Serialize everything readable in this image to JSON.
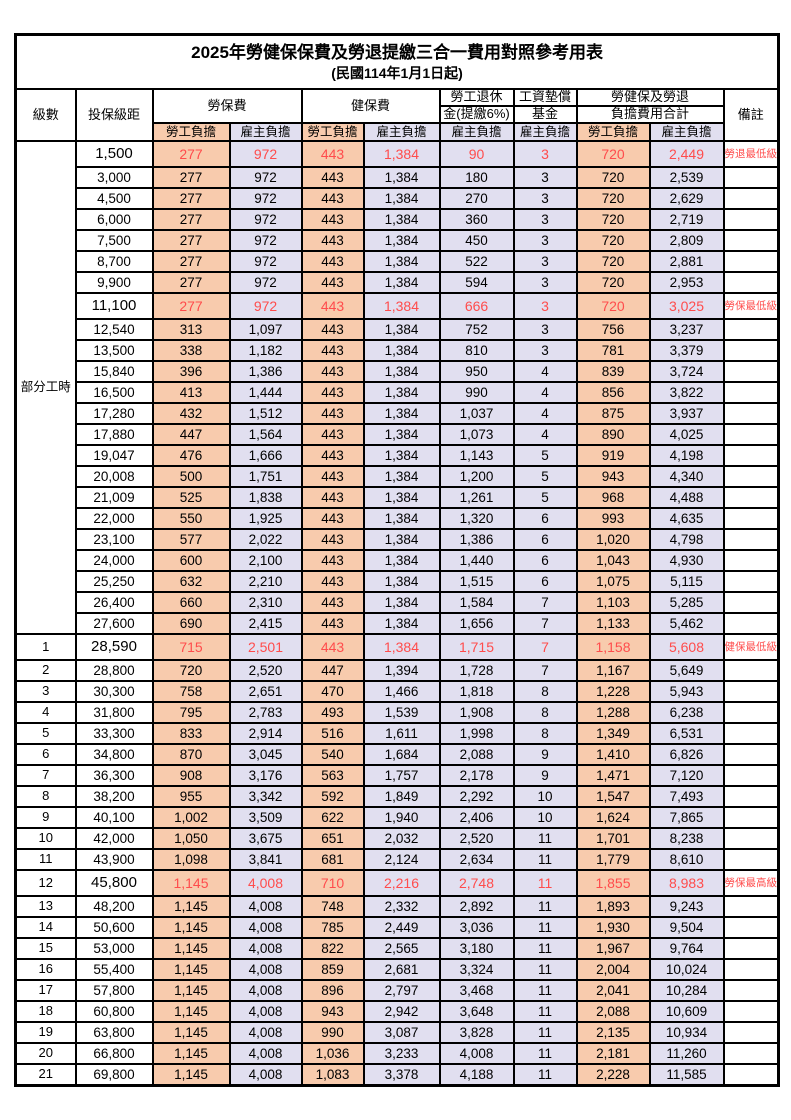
{
  "title": {
    "line1": "2025年勞健保保費及勞退提繳三合一費用對照參考用表",
    "line2": "(民國114年1月1日起)"
  },
  "columns": {
    "level": "級數",
    "bracket": "投保級距",
    "labor_insurance": "勞保費",
    "health_insurance": "健保費",
    "pension_line1": "勞工退休",
    "pension_line2": "金(提繳6%)",
    "wage_fund_line1": "工資墊償",
    "wage_fund_line2": "基金",
    "total_line1": "勞健保及勞退",
    "total_line2": "負擔費用合計",
    "remark": "備註"
  },
  "subheaders": [
    "勞工負擔",
    "雇主負擔",
    "勞工負擔",
    "雇主負擔",
    "雇主負擔",
    "雇主負擔",
    "勞工負擔",
    "雇主負擔"
  ],
  "part_time_label": "部分工時",
  "colors": {
    "employee_bg": "#F8CBAD",
    "employer_bg": "#E1DFF0",
    "highlight_text": "#FF4C4C",
    "border": "#000000"
  },
  "rows": [
    {
      "level": "",
      "bracket": "1,500",
      "values": [
        "277",
        "972",
        "443",
        "1,384",
        "90",
        "3",
        "720",
        "2,449"
      ],
      "remark": "勞退最低級距",
      "highlight": true
    },
    {
      "level": "",
      "bracket": "3,000",
      "values": [
        "277",
        "972",
        "443",
        "1,384",
        "180",
        "3",
        "720",
        "2,539"
      ],
      "remark": "",
      "highlight": false
    },
    {
      "level": "",
      "bracket": "4,500",
      "values": [
        "277",
        "972",
        "443",
        "1,384",
        "270",
        "3",
        "720",
        "2,629"
      ],
      "remark": "",
      "highlight": false
    },
    {
      "level": "",
      "bracket": "6,000",
      "values": [
        "277",
        "972",
        "443",
        "1,384",
        "360",
        "3",
        "720",
        "2,719"
      ],
      "remark": "",
      "highlight": false
    },
    {
      "level": "",
      "bracket": "7,500",
      "values": [
        "277",
        "972",
        "443",
        "1,384",
        "450",
        "3",
        "720",
        "2,809"
      ],
      "remark": "",
      "highlight": false
    },
    {
      "level": "",
      "bracket": "8,700",
      "values": [
        "277",
        "972",
        "443",
        "1,384",
        "522",
        "3",
        "720",
        "2,881"
      ],
      "remark": "",
      "highlight": false
    },
    {
      "level": "",
      "bracket": "9,900",
      "values": [
        "277",
        "972",
        "443",
        "1,384",
        "594",
        "3",
        "720",
        "2,953"
      ],
      "remark": "",
      "highlight": false
    },
    {
      "level": "",
      "bracket": "11,100",
      "values": [
        "277",
        "972",
        "443",
        "1,384",
        "666",
        "3",
        "720",
        "3,025"
      ],
      "remark": "勞保最低級距",
      "highlight": true
    },
    {
      "level": "",
      "bracket": "12,540",
      "values": [
        "313",
        "1,097",
        "443",
        "1,384",
        "752",
        "3",
        "756",
        "3,237"
      ],
      "remark": "",
      "highlight": false
    },
    {
      "level": "",
      "bracket": "13,500",
      "values": [
        "338",
        "1,182",
        "443",
        "1,384",
        "810",
        "3",
        "781",
        "3,379"
      ],
      "remark": "",
      "highlight": false
    },
    {
      "level": "",
      "bracket": "15,840",
      "values": [
        "396",
        "1,386",
        "443",
        "1,384",
        "950",
        "4",
        "839",
        "3,724"
      ],
      "remark": "",
      "highlight": false
    },
    {
      "level": "",
      "bracket": "16,500",
      "values": [
        "413",
        "1,444",
        "443",
        "1,384",
        "990",
        "4",
        "856",
        "3,822"
      ],
      "remark": "",
      "highlight": false
    },
    {
      "level": "",
      "bracket": "17,280",
      "values": [
        "432",
        "1,512",
        "443",
        "1,384",
        "1,037",
        "4",
        "875",
        "3,937"
      ],
      "remark": "",
      "highlight": false
    },
    {
      "level": "",
      "bracket": "17,880",
      "values": [
        "447",
        "1,564",
        "443",
        "1,384",
        "1,073",
        "4",
        "890",
        "4,025"
      ],
      "remark": "",
      "highlight": false
    },
    {
      "level": "",
      "bracket": "19,047",
      "values": [
        "476",
        "1,666",
        "443",
        "1,384",
        "1,143",
        "5",
        "919",
        "4,198"
      ],
      "remark": "",
      "highlight": false
    },
    {
      "level": "",
      "bracket": "20,008",
      "values": [
        "500",
        "1,751",
        "443",
        "1,384",
        "1,200",
        "5",
        "943",
        "4,340"
      ],
      "remark": "",
      "highlight": false
    },
    {
      "level": "",
      "bracket": "21,009",
      "values": [
        "525",
        "1,838",
        "443",
        "1,384",
        "1,261",
        "5",
        "968",
        "4,488"
      ],
      "remark": "",
      "highlight": false
    },
    {
      "level": "",
      "bracket": "22,000",
      "values": [
        "550",
        "1,925",
        "443",
        "1,384",
        "1,320",
        "6",
        "993",
        "4,635"
      ],
      "remark": "",
      "highlight": false
    },
    {
      "level": "",
      "bracket": "23,100",
      "values": [
        "577",
        "2,022",
        "443",
        "1,384",
        "1,386",
        "6",
        "1,020",
        "4,798"
      ],
      "remark": "",
      "highlight": false
    },
    {
      "level": "",
      "bracket": "24,000",
      "values": [
        "600",
        "2,100",
        "443",
        "1,384",
        "1,440",
        "6",
        "1,043",
        "4,930"
      ],
      "remark": "",
      "highlight": false
    },
    {
      "level": "",
      "bracket": "25,250",
      "values": [
        "632",
        "2,210",
        "443",
        "1,384",
        "1,515",
        "6",
        "1,075",
        "5,115"
      ],
      "remark": "",
      "highlight": false
    },
    {
      "level": "",
      "bracket": "26,400",
      "values": [
        "660",
        "2,310",
        "443",
        "1,384",
        "1,584",
        "7",
        "1,103",
        "5,285"
      ],
      "remark": "",
      "highlight": false
    },
    {
      "level": "",
      "bracket": "27,600",
      "values": [
        "690",
        "2,415",
        "443",
        "1,384",
        "1,656",
        "7",
        "1,133",
        "5,462"
      ],
      "remark": "",
      "highlight": false
    },
    {
      "level": "1",
      "bracket": "28,590",
      "values": [
        "715",
        "2,501",
        "443",
        "1,384",
        "1,715",
        "7",
        "1,158",
        "5,608"
      ],
      "remark": "健保最低級距",
      "highlight": true
    },
    {
      "level": "2",
      "bracket": "28,800",
      "values": [
        "720",
        "2,520",
        "447",
        "1,394",
        "1,728",
        "7",
        "1,167",
        "5,649"
      ],
      "remark": "",
      "highlight": false
    },
    {
      "level": "3",
      "bracket": "30,300",
      "values": [
        "758",
        "2,651",
        "470",
        "1,466",
        "1,818",
        "8",
        "1,228",
        "5,943"
      ],
      "remark": "",
      "highlight": false
    },
    {
      "level": "4",
      "bracket": "31,800",
      "values": [
        "795",
        "2,783",
        "493",
        "1,539",
        "1,908",
        "8",
        "1,288",
        "6,238"
      ],
      "remark": "",
      "highlight": false
    },
    {
      "level": "5",
      "bracket": "33,300",
      "values": [
        "833",
        "2,914",
        "516",
        "1,611",
        "1,998",
        "8",
        "1,349",
        "6,531"
      ],
      "remark": "",
      "highlight": false
    },
    {
      "level": "6",
      "bracket": "34,800",
      "values": [
        "870",
        "3,045",
        "540",
        "1,684",
        "2,088",
        "9",
        "1,410",
        "6,826"
      ],
      "remark": "",
      "highlight": false
    },
    {
      "level": "7",
      "bracket": "36,300",
      "values": [
        "908",
        "3,176",
        "563",
        "1,757",
        "2,178",
        "9",
        "1,471",
        "7,120"
      ],
      "remark": "",
      "highlight": false
    },
    {
      "level": "8",
      "bracket": "38,200",
      "values": [
        "955",
        "3,342",
        "592",
        "1,849",
        "2,292",
        "10",
        "1,547",
        "7,493"
      ],
      "remark": "",
      "highlight": false
    },
    {
      "level": "9",
      "bracket": "40,100",
      "values": [
        "1,002",
        "3,509",
        "622",
        "1,940",
        "2,406",
        "10",
        "1,624",
        "7,865"
      ],
      "remark": "",
      "highlight": false
    },
    {
      "level": "10",
      "bracket": "42,000",
      "values": [
        "1,050",
        "3,675",
        "651",
        "2,032",
        "2,520",
        "11",
        "1,701",
        "8,238"
      ],
      "remark": "",
      "highlight": false
    },
    {
      "level": "11",
      "bracket": "43,900",
      "values": [
        "1,098",
        "3,841",
        "681",
        "2,124",
        "2,634",
        "11",
        "1,779",
        "8,610"
      ],
      "remark": "",
      "highlight": false
    },
    {
      "level": "12",
      "bracket": "45,800",
      "values": [
        "1,145",
        "4,008",
        "710",
        "2,216",
        "2,748",
        "11",
        "1,855",
        "8,983"
      ],
      "remark": "勞保最高級距",
      "highlight": true
    },
    {
      "level": "13",
      "bracket": "48,200",
      "values": [
        "1,145",
        "4,008",
        "748",
        "2,332",
        "2,892",
        "11",
        "1,893",
        "9,243"
      ],
      "remark": "",
      "highlight": false
    },
    {
      "level": "14",
      "bracket": "50,600",
      "values": [
        "1,145",
        "4,008",
        "785",
        "2,449",
        "3,036",
        "11",
        "1,930",
        "9,504"
      ],
      "remark": "",
      "highlight": false
    },
    {
      "level": "15",
      "bracket": "53,000",
      "values": [
        "1,145",
        "4,008",
        "822",
        "2,565",
        "3,180",
        "11",
        "1,967",
        "9,764"
      ],
      "remark": "",
      "highlight": false
    },
    {
      "level": "16",
      "bracket": "55,400",
      "values": [
        "1,145",
        "4,008",
        "859",
        "2,681",
        "3,324",
        "11",
        "2,004",
        "10,024"
      ],
      "remark": "",
      "highlight": false
    },
    {
      "level": "17",
      "bracket": "57,800",
      "values": [
        "1,145",
        "4,008",
        "896",
        "2,797",
        "3,468",
        "11",
        "2,041",
        "10,284"
      ],
      "remark": "",
      "highlight": false
    },
    {
      "level": "18",
      "bracket": "60,800",
      "values": [
        "1,145",
        "4,008",
        "943",
        "2,942",
        "3,648",
        "11",
        "2,088",
        "10,609"
      ],
      "remark": "",
      "highlight": false
    },
    {
      "level": "19",
      "bracket": "63,800",
      "values": [
        "1,145",
        "4,008",
        "990",
        "3,087",
        "3,828",
        "11",
        "2,135",
        "10,934"
      ],
      "remark": "",
      "highlight": false
    },
    {
      "level": "20",
      "bracket": "66,800",
      "values": [
        "1,145",
        "4,008",
        "1,036",
        "3,233",
        "4,008",
        "11",
        "2,181",
        "11,260"
      ],
      "remark": "",
      "highlight": false
    },
    {
      "level": "21",
      "bracket": "69,800",
      "values": [
        "1,145",
        "4,008",
        "1,083",
        "3,378",
        "4,188",
        "11",
        "2,228",
        "11,585"
      ],
      "remark": "",
      "highlight": false
    }
  ]
}
